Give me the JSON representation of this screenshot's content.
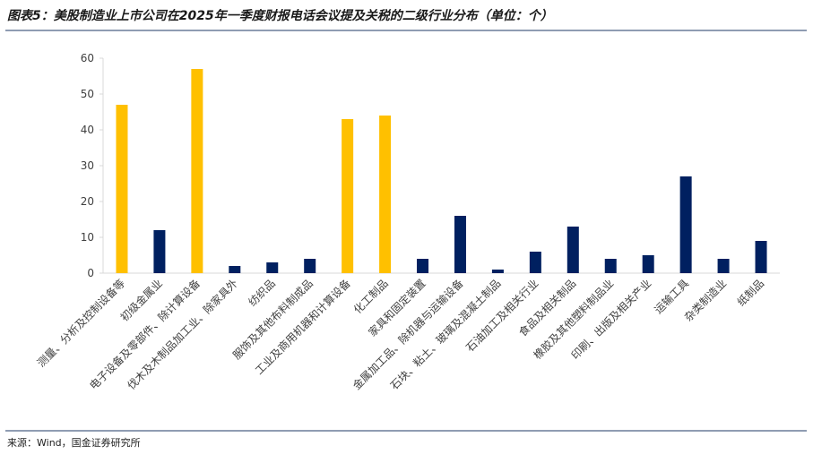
{
  "chart_data": {
    "type": "bar",
    "title": "图表5：美股制造业上市公司在2025年一季度财报电话会议提及关税的二级行业分布（单位：个）",
    "source": "来源：Wind，国金证券研究所",
    "categories": [
      "测量、分析及控制设备等",
      "初级金属业",
      "电子设备及零部件、除计算设备",
      "伐木及木制品加工业、除家具外",
      "纺织品",
      "服饰及其他布料制成品",
      "工业及商用机器和计算设备",
      "化工制品",
      "家具和固定装置",
      "金属加工品、除机器与运输设备",
      "石块、粘土、玻璃及混凝土制品",
      "石油加工及相关行业",
      "食品及相关制品",
      "橡胶及其他塑料制品业",
      "印刷、出版及相关产业",
      "运输工具",
      "杂类制造业",
      "纸制品"
    ],
    "values": [
      47,
      12,
      57,
      2,
      3,
      4,
      43,
      44,
      4,
      16,
      1,
      6,
      13,
      4,
      5,
      27,
      4,
      9
    ],
    "colors": [
      "#ffc000",
      "#002060",
      "#ffc000",
      "#002060",
      "#002060",
      "#002060",
      "#ffc000",
      "#ffc000",
      "#002060",
      "#002060",
      "#002060",
      "#002060",
      "#002060",
      "#002060",
      "#002060",
      "#002060",
      "#002060",
      "#002060"
    ],
    "ylim": [
      0,
      60
    ],
    "yticks": [
      0,
      10,
      20,
      30,
      40,
      50,
      60
    ],
    "grid": false
  }
}
